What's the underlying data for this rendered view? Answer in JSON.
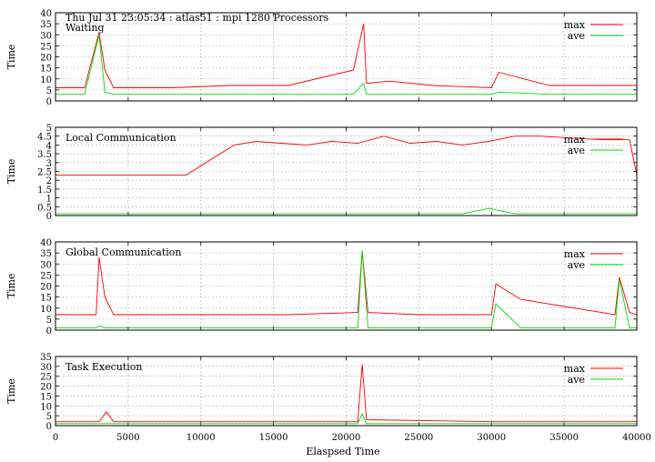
{
  "header": {
    "title": "Thu Jul 31 23:05:34 : atlas51 : mpi 1280 Processors"
  },
  "shared": {
    "xlabel": "Elaspsed Time",
    "xlim": [
      0,
      40000
    ],
    "xticks": [
      0,
      5000,
      10000,
      15000,
      20000,
      25000,
      30000,
      35000,
      40000
    ],
    "xtick_labels": [
      "0",
      "5000",
      "10000",
      "15000",
      "20000",
      "25000",
      "30000",
      "35000",
      "40000"
    ],
    "colors": {
      "max": "#ff0000",
      "ave": "#00dd00",
      "grid": "#999999"
    }
  },
  "chart_data": [
    {
      "type": "line",
      "panel_label": "Waiting",
      "ylabel": "Time",
      "ylim": [
        0,
        40
      ],
      "yticks": [
        0,
        5,
        10,
        15,
        20,
        25,
        30,
        35,
        40
      ],
      "ytick_labels": [
        "0",
        "5",
        "10",
        "15",
        "20",
        "25",
        "30",
        "35",
        "40"
      ],
      "grid": true,
      "legend": "top-right",
      "x": [
        0,
        2000,
        3000,
        3400,
        4000,
        8000,
        12000,
        16000,
        20500,
        21200,
        21400,
        23000,
        26000,
        30000,
        30500,
        34000,
        38000,
        40000
      ],
      "series": [
        {
          "name": "max",
          "values": [
            6,
            6,
            31,
            14,
            6,
            6,
            7,
            7,
            14,
            35,
            8,
            9,
            7,
            6,
            13,
            7,
            7,
            7
          ]
        },
        {
          "name": "ave",
          "values": [
            3,
            3,
            30,
            4,
            3,
            3,
            3,
            3,
            3,
            8,
            3,
            3,
            3,
            3,
            4,
            3,
            3,
            3
          ]
        }
      ]
    },
    {
      "type": "line",
      "panel_label": "Local Communication",
      "ylabel": "Time",
      "ylim": [
        0,
        5
      ],
      "yticks": [
        0,
        0.5,
        1,
        1.5,
        2,
        2.5,
        3,
        3.5,
        4,
        4.5,
        5
      ],
      "ytick_labels": [
        "0",
        "0.5",
        "1",
        "1.5",
        "2",
        "2.5",
        "3",
        "3.5",
        "4",
        "4.5",
        "5"
      ],
      "grid": true,
      "legend": "top-right",
      "x": [
        0,
        3000,
        6000,
        9000,
        12300,
        13800,
        15500,
        17300,
        19000,
        20800,
        22600,
        24400,
        26200,
        28000,
        29800,
        31600,
        33400,
        35200,
        37600,
        39500,
        40000
      ],
      "series": [
        {
          "name": "max",
          "values": [
            2.3,
            2.3,
            2.3,
            2.3,
            4.0,
            4.2,
            4.1,
            4.0,
            4.2,
            4.1,
            4.5,
            4.1,
            4.2,
            4.0,
            4.2,
            4.5,
            4.5,
            4.4,
            4.3,
            4.3,
            2.3
          ]
        },
        {
          "name": "ave",
          "values": [
            0.1,
            0.1,
            0.1,
            0.1,
            0.1,
            0.1,
            0.1,
            0.1,
            0.1,
            0.1,
            0.1,
            0.1,
            0.1,
            0.1,
            0.4,
            0.1,
            0.1,
            0.1,
            0.1,
            0.1,
            0.1
          ]
        }
      ]
    },
    {
      "type": "line",
      "panel_label": "Global Communication",
      "ylabel": "Time",
      "ylim": [
        0,
        40
      ],
      "yticks": [
        0,
        5,
        10,
        15,
        20,
        25,
        30,
        35,
        40
      ],
      "ytick_labels": [
        "0",
        "5",
        "10",
        "15",
        "20",
        "25",
        "30",
        "35",
        "40"
      ],
      "grid": true,
      "legend": "top-right",
      "x": [
        0,
        2800,
        3000,
        3400,
        4000,
        10000,
        16000,
        20800,
        21100,
        21500,
        25000,
        30000,
        30300,
        32000,
        38500,
        38800,
        39500,
        40000
      ],
      "series": [
        {
          "name": "max",
          "values": [
            7,
            7,
            33,
            15,
            7,
            7,
            7,
            8,
            36,
            8,
            7,
            7,
            21,
            14,
            7,
            24,
            8,
            7
          ]
        },
        {
          "name": "ave",
          "values": [
            1,
            1,
            2,
            1,
            1,
            1,
            1,
            1,
            36,
            1,
            1,
            1,
            12,
            1,
            1,
            23,
            1,
            1
          ]
        }
      ]
    },
    {
      "type": "line",
      "panel_label": "Task Execution",
      "ylabel": "Time",
      "ylim": [
        0,
        35
      ],
      "yticks": [
        0,
        5,
        10,
        15,
        20,
        25,
        30,
        35
      ],
      "ytick_labels": [
        "0",
        "5",
        "10",
        "15",
        "20",
        "25",
        "30",
        "35"
      ],
      "grid": true,
      "legend": "top-right",
      "x": [
        0,
        3000,
        3500,
        4000,
        10000,
        20800,
        21100,
        21400,
        30000,
        40000
      ],
      "series": [
        {
          "name": "max",
          "values": [
            2,
            2,
            7,
            2,
            2,
            2,
            31,
            3,
            2,
            2
          ]
        },
        {
          "name": "ave",
          "values": [
            1,
            1,
            1,
            1,
            1,
            1,
            6,
            1,
            1,
            1
          ]
        }
      ]
    }
  ]
}
